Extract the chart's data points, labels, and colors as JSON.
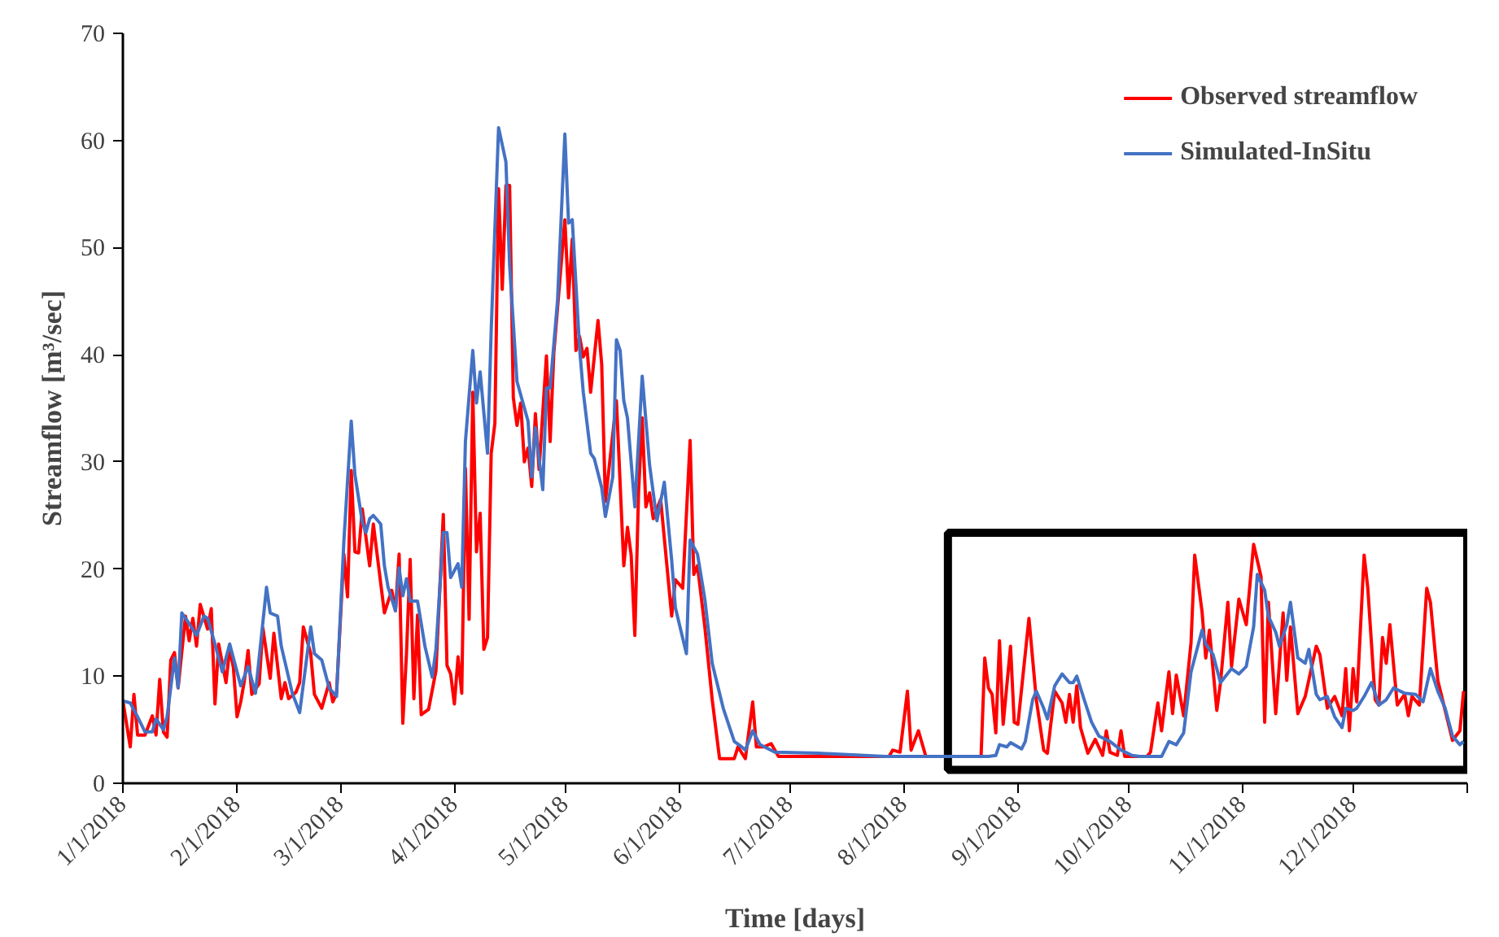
{
  "chart_data": {
    "type": "line",
    "xlabel": "Time [days]",
    "ylabel": "Streamflow [m³/sec]",
    "xlim": [
      "2018-01-01",
      "2019-01-01"
    ],
    "ylim": [
      0,
      70
    ],
    "xticks": [
      {
        "value": "2018-01-01",
        "label": "1/1/2018"
      },
      {
        "value": "2018-02-01",
        "label": "2/1/2018"
      },
      {
        "value": "2018-03-01",
        "label": "3/1/2018"
      },
      {
        "value": "2018-04-01",
        "label": "4/1/2018"
      },
      {
        "value": "2018-05-01",
        "label": "5/1/2018"
      },
      {
        "value": "2018-06-01",
        "label": "6/1/2018"
      },
      {
        "value": "2018-07-01",
        "label": "7/1/2018"
      },
      {
        "value": "2018-08-01",
        "label": "8/1/2018"
      },
      {
        "value": "2018-09-01",
        "label": "9/1/2018"
      },
      {
        "value": "2018-10-01",
        "label": "10/1/2018"
      },
      {
        "value": "2018-11-01",
        "label": "11/1/2018"
      },
      {
        "value": "2018-12-01",
        "label": "12/1/2018"
      },
      {
        "value": "2019-01-01",
        "label": null
      }
    ],
    "yticks": [
      0,
      10,
      20,
      30,
      40,
      50,
      60,
      70
    ],
    "grid": false,
    "legend": "top right",
    "marker": "none",
    "line_style": "solid",
    "bands": [
      {
        "axis": "x",
        "from": "2018-08-13",
        "to": "2019-01-01",
        "label": null,
        "color": "#000000"
      }
    ],
    "series": [
      {
        "name": "Observed streamflow",
        "color": "#ff0000",
        "x": [
          "2018-01-01",
          "2018-01-03",
          "2018-01-04",
          "2018-01-05",
          "2018-01-07",
          "2018-01-09",
          "2018-01-10",
          "2018-01-11",
          "2018-01-12",
          "2018-01-13",
          "2018-01-14",
          "2018-01-15",
          "2018-01-16",
          "2018-01-18",
          "2018-01-19",
          "2018-01-20",
          "2018-01-21",
          "2018-01-22",
          "2018-01-24",
          "2018-01-25",
          "2018-01-26",
          "2018-01-27",
          "2018-01-29",
          "2018-01-30",
          "2018-01-31",
          "2018-02-01",
          "2018-02-02",
          "2018-02-03",
          "2018-02-04",
          "2018-02-05",
          "2018-02-07",
          "2018-02-08",
          "2018-02-10",
          "2018-02-11",
          "2018-02-13",
          "2018-02-14",
          "2018-02-15",
          "2018-02-17",
          "2018-02-18",
          "2018-02-19",
          "2018-02-21",
          "2018-02-22",
          "2018-02-24",
          "2018-02-26",
          "2018-02-27",
          "2018-02-28",
          "2018-03-02",
          "2018-03-03",
          "2018-03-04",
          "2018-03-05",
          "2018-03-06",
          "2018-03-07",
          "2018-03-09",
          "2018-03-10",
          "2018-03-13",
          "2018-03-15",
          "2018-03-16",
          "2018-03-17",
          "2018-03-18",
          "2018-03-19",
          "2018-03-20",
          "2018-03-21",
          "2018-03-22",
          "2018-03-23",
          "2018-03-25",
          "2018-03-27",
          "2018-03-29",
          "2018-03-30",
          "2018-03-31",
          "2018-04-01",
          "2018-04-02",
          "2018-04-03",
          "2018-04-04",
          "2018-04-05",
          "2018-04-06",
          "2018-04-07",
          "2018-04-08",
          "2018-04-09",
          "2018-04-10",
          "2018-04-11",
          "2018-04-12",
          "2018-04-13",
          "2018-04-14",
          "2018-04-15",
          "2018-04-16",
          "2018-04-17",
          "2018-04-18",
          "2018-04-19",
          "2018-04-20",
          "2018-04-21",
          "2018-04-22",
          "2018-04-23",
          "2018-04-24",
          "2018-04-26",
          "2018-04-27",
          "2018-04-28",
          "2018-05-01",
          "2018-05-02",
          "2018-05-03",
          "2018-05-04",
          "2018-05-05",
          "2018-05-06",
          "2018-05-07",
          "2018-05-08",
          "2018-05-10",
          "2018-05-11",
          "2018-05-12",
          "2018-05-15",
          "2018-05-17",
          "2018-05-18",
          "2018-05-19",
          "2018-05-20",
          "2018-05-21",
          "2018-05-22",
          "2018-05-23",
          "2018-05-24",
          "2018-05-25",
          "2018-05-27",
          "2018-05-30",
          "2018-05-31",
          "2018-06-02",
          "2018-06-04",
          "2018-06-05",
          "2018-06-06",
          "2018-06-08",
          "2018-06-10",
          "2018-06-12",
          "2018-06-16",
          "2018-06-17",
          "2018-06-19",
          "2018-06-21",
          "2018-06-22",
          "2018-06-24",
          "2018-06-26",
          "2018-06-28",
          "2018-07-28",
          "2018-07-29",
          "2018-07-31",
          "2018-08-02",
          "2018-08-03",
          "2018-08-05",
          "2018-08-07",
          "2018-08-22",
          "2018-08-23",
          "2018-08-24",
          "2018-08-25",
          "2018-08-26",
          "2018-08-27",
          "2018-08-28",
          "2018-08-30",
          "2018-08-31",
          "2018-09-01",
          "2018-09-04",
          "2018-09-06",
          "2018-09-08",
          "2018-09-09",
          "2018-09-11",
          "2018-09-13",
          "2018-09-14",
          "2018-09-15",
          "2018-09-16",
          "2018-09-17",
          "2018-09-18",
          "2018-09-20",
          "2018-09-22",
          "2018-09-24",
          "2018-09-25",
          "2018-09-26",
          "2018-09-28",
          "2018-09-29",
          "2018-09-30",
          "2018-10-06",
          "2018-10-07",
          "2018-10-09",
          "2018-10-10",
          "2018-10-12",
          "2018-10-13",
          "2018-10-14",
          "2018-10-16",
          "2018-10-18",
          "2018-10-19",
          "2018-10-21",
          "2018-10-22",
          "2018-10-23",
          "2018-10-25",
          "2018-10-26",
          "2018-10-28",
          "2018-10-29",
          "2018-10-31",
          "2018-11-02",
          "2018-11-04",
          "2018-11-06",
          "2018-11-07",
          "2018-11-08",
          "2018-11-10",
          "2018-11-12",
          "2018-11-13",
          "2018-11-14",
          "2018-11-16",
          "2018-11-18",
          "2018-11-21",
          "2018-11-22",
          "2018-11-24",
          "2018-11-26",
          "2018-11-28",
          "2018-11-29",
          "2018-11-30",
          "2018-12-01",
          "2018-12-02",
          "2018-12-04",
          "2018-12-05",
          "2018-12-07",
          "2018-12-08",
          "2018-12-09",
          "2018-12-10",
          "2018-12-11",
          "2018-12-13",
          "2018-12-15",
          "2018-12-16",
          "2018-12-17",
          "2018-12-19",
          "2018-12-21",
          "2018-12-22",
          "2018-12-24",
          "2018-12-26",
          "2018-12-28",
          "2018-12-30",
          "2018-12-31"
        ],
        "values": [
          7.7,
          3.4,
          8.3,
          4.5,
          4.5,
          6.3,
          4.5,
          9.7,
          4.8,
          4.3,
          11.5,
          12.2,
          8.9,
          15.6,
          13.3,
          15.4,
          12.8,
          16.7,
          14.4,
          16.3,
          7.4,
          13.0,
          9.4,
          12.6,
          10.8,
          6.2,
          7.6,
          9.6,
          12.4,
          8.3,
          9.3,
          14.5,
          9.8,
          14.0,
          7.9,
          9.4,
          7.9,
          8.5,
          9.4,
          14.6,
          12.1,
          8.3,
          7.0,
          9.4,
          7.6,
          8.4,
          21.4,
          17.4,
          29.2,
          21.6,
          21.5,
          25.6,
          20.3,
          24.2,
          15.9,
          18.0,
          16.1,
          21.4,
          5.6,
          12.1,
          20.9,
          7.9,
          15.7,
          6.4,
          6.9,
          10.5,
          25.1,
          11.0,
          10.2,
          7.4,
          11.8,
          8.4,
          29.4,
          15.3,
          36.5,
          21.6,
          25.2,
          12.5,
          13.6,
          30.8,
          33.6,
          55.5,
          46.1,
          55.8,
          55.8,
          36.0,
          33.4,
          35.5,
          30.0,
          31.3,
          27.7,
          34.5,
          29.3,
          39.9,
          31.9,
          40.2,
          52.6,
          45.3,
          50.8,
          40.4,
          41.7,
          39.8,
          40.6,
          36.5,
          43.2,
          39.1,
          26.3,
          35.7,
          20.3,
          23.9,
          21.3,
          13.8,
          27.1,
          34.1,
          25.8,
          27.1,
          24.7,
          26.5,
          15.6,
          19.0,
          18.2,
          32.0,
          19.5,
          20.3,
          14.6,
          7.8,
          2.3,
          2.3,
          3.4,
          2.3,
          7.6,
          3.4,
          3.4,
          3.7,
          2.5,
          2.5,
          3.1,
          2.9,
          8.6,
          3.1,
          4.9,
          2.5,
          2.5,
          11.7,
          8.9,
          8.3,
          4.7,
          13.3,
          5.5,
          12.8,
          5.7,
          5.5,
          15.4,
          7.8,
          3.1,
          2.8,
          8.6,
          7.5,
          5.7,
          8.3,
          5.7,
          9.1,
          5.2,
          2.8,
          4.1,
          2.6,
          4.9,
          2.9,
          2.6,
          4.9,
          2.5,
          2.5,
          2.9,
          7.5,
          4.9,
          10.4,
          6.5,
          10.1,
          6.3,
          13.1,
          21.3,
          16.0,
          11.7,
          14.3,
          6.8,
          9.4,
          16.9,
          10.9,
          17.2,
          14.8,
          22.3,
          19.3,
          5.7,
          16.9,
          6.5,
          15.9,
          9.6,
          14.6,
          6.5,
          8.1,
          12.8,
          12.0,
          7.0,
          8.1,
          6.3,
          10.7,
          4.9,
          10.7,
          7.6,
          21.3,
          18.2,
          7.8,
          7.3,
          13.6,
          11.2,
          14.8,
          7.3,
          8.3,
          6.3,
          8.1,
          7.3,
          18.2,
          16.9,
          9.6,
          6.8,
          4.0,
          4.9,
          8.6
        ]
      },
      {
        "name": "Simulated-InSitu",
        "color": "#4472c4",
        "x": [
          "2018-01-01",
          "2018-01-03",
          "2018-01-05",
          "2018-01-07",
          "2018-01-09",
          "2018-01-10",
          "2018-01-12",
          "2018-01-13",
          "2018-01-15",
          "2018-01-16",
          "2018-01-17",
          "2018-01-19",
          "2018-01-21",
          "2018-01-23",
          "2018-01-24",
          "2018-01-26",
          "2018-01-28",
          "2018-01-30",
          "2018-02-02",
          "2018-02-04",
          "2018-02-06",
          "2018-02-09",
          "2018-02-10",
          "2018-02-12",
          "2018-02-13",
          "2018-02-16",
          "2018-02-18",
          "2018-02-21",
          "2018-02-22",
          "2018-02-24",
          "2018-02-26",
          "2018-02-28",
          "2018-03-02",
          "2018-03-04",
          "2018-03-05",
          "2018-03-07",
          "2018-03-08",
          "2018-03-09",
          "2018-03-10",
          "2018-03-12",
          "2018-03-13",
          "2018-03-14",
          "2018-03-16",
          "2018-03-17",
          "2018-03-18",
          "2018-03-19",
          "2018-03-20",
          "2018-03-22",
          "2018-03-24",
          "2018-03-26",
          "2018-03-27",
          "2018-03-29",
          "2018-03-30",
          "2018-03-31",
          "2018-04-02",
          "2018-04-03",
          "2018-04-04",
          "2018-04-06",
          "2018-04-07",
          "2018-04-08",
          "2018-04-10",
          "2018-04-11",
          "2018-04-13",
          "2018-04-15",
          "2018-04-16",
          "2018-04-18",
          "2018-04-21",
          "2018-04-22",
          "2018-04-23",
          "2018-04-25",
          "2018-04-26",
          "2018-04-27",
          "2018-04-29",
          "2018-05-01",
          "2018-05-02",
          "2018-05-03",
          "2018-05-05",
          "2018-05-06",
          "2018-05-08",
          "2018-05-09",
          "2018-05-11",
          "2018-05-12",
          "2018-05-14",
          "2018-05-15",
          "2018-05-16",
          "2018-05-17",
          "2018-05-18",
          "2018-05-20",
          "2018-05-22",
          "2018-05-24",
          "2018-05-26",
          "2018-05-28",
          "2018-05-30",
          "2018-05-31",
          "2018-06-03",
          "2018-06-04",
          "2018-06-06",
          "2018-06-08",
          "2018-06-10",
          "2018-06-13",
          "2018-06-16",
          "2018-06-18",
          "2018-06-19",
          "2018-06-21",
          "2018-06-23",
          "2018-06-27",
          "2018-07-09",
          "2018-07-27",
          "2018-08-24",
          "2018-08-26",
          "2018-08-27",
          "2018-08-29",
          "2018-08-30",
          "2018-09-02",
          "2018-09-03",
          "2018-09-05",
          "2018-09-06",
          "2018-09-08",
          "2018-09-09",
          "2018-09-11",
          "2018-09-13",
          "2018-09-15",
          "2018-09-16",
          "2018-09-17",
          "2018-09-19",
          "2018-09-21",
          "2018-09-23",
          "2018-09-26",
          "2018-09-29",
          "2018-10-02",
          "2018-10-04",
          "2018-10-10",
          "2018-10-12",
          "2018-10-14",
          "2018-10-16",
          "2018-10-18",
          "2018-10-21",
          "2018-10-22",
          "2018-10-24",
          "2018-10-26",
          "2018-10-29",
          "2018-10-31",
          "2018-11-02",
          "2018-11-04",
          "2018-11-05",
          "2018-11-07",
          "2018-11-08",
          "2018-11-10",
          "2018-11-11",
          "2018-11-13",
          "2018-11-14",
          "2018-11-16",
          "2018-11-18",
          "2018-11-19",
          "2018-11-21",
          "2018-11-22",
          "2018-11-24",
          "2018-11-26",
          "2018-11-28",
          "2018-11-29",
          "2018-12-01",
          "2018-12-02",
          "2018-12-04",
          "2018-12-06",
          "2018-12-08",
          "2018-12-10",
          "2018-12-12",
          "2018-12-15",
          "2018-12-18",
          "2018-12-20",
          "2018-12-22",
          "2018-12-24",
          "2018-12-26",
          "2018-12-28",
          "2018-12-30",
          "2018-12-31"
        ],
        "values": [
          7.7,
          7.5,
          6.2,
          4.8,
          4.8,
          6.0,
          5.0,
          6.2,
          11.7,
          8.9,
          15.9,
          14.9,
          13.8,
          15.6,
          15.4,
          13.0,
          10.4,
          13.0,
          9.1,
          10.9,
          8.4,
          18.3,
          15.9,
          15.6,
          12.8,
          8.4,
          6.6,
          14.6,
          12.1,
          11.5,
          8.9,
          8.1,
          22.6,
          33.8,
          28.8,
          24.4,
          23.4,
          24.7,
          25.0,
          24.2,
          20.3,
          18.3,
          16.1,
          20.1,
          17.5,
          19.1,
          17.0,
          17.0,
          12.8,
          9.9,
          12.5,
          23.4,
          23.4,
          19.2,
          20.5,
          18.3,
          31.9,
          40.4,
          35.5,
          38.4,
          30.8,
          42.3,
          61.2,
          58.0,
          48.4,
          37.5,
          33.8,
          28.6,
          33.2,
          27.4,
          36.9,
          36.9,
          45.0,
          60.6,
          52.3,
          52.6,
          40.6,
          36.5,
          30.8,
          30.3,
          27.6,
          24.9,
          28.6,
          41.4,
          40.4,
          35.7,
          34.1,
          25.8,
          38.0,
          29.7,
          24.5,
          28.1,
          20.8,
          16.4,
          12.1,
          22.7,
          21.4,
          17.2,
          11.2,
          7.0,
          3.9,
          3.4,
          3.1,
          4.9,
          3.6,
          2.9,
          2.8,
          2.5,
          2.5,
          2.6,
          3.6,
          3.4,
          3.8,
          3.2,
          3.9,
          7.8,
          8.6,
          7.0,
          6.0,
          9.1,
          10.2,
          9.4,
          9.4,
          10.0,
          7.8,
          5.7,
          4.4,
          3.9,
          3.1,
          2.6,
          2.5,
          2.5,
          3.9,
          3.6,
          4.7,
          10.4,
          14.3,
          13.0,
          12.0,
          9.4,
          10.7,
          10.2,
          10.9,
          14.6,
          19.5,
          18.0,
          15.6,
          14.1,
          12.8,
          14.8,
          16.9,
          11.7,
          11.2,
          12.5,
          8.3,
          7.8,
          8.1,
          6.2,
          5.2,
          7.0,
          6.8,
          7.0,
          8.1,
          9.4,
          7.3,
          7.8,
          8.9,
          8.4,
          8.3,
          7.6,
          10.7,
          8.6,
          7.0,
          4.4,
          3.6,
          3.9
        ]
      }
    ]
  }
}
